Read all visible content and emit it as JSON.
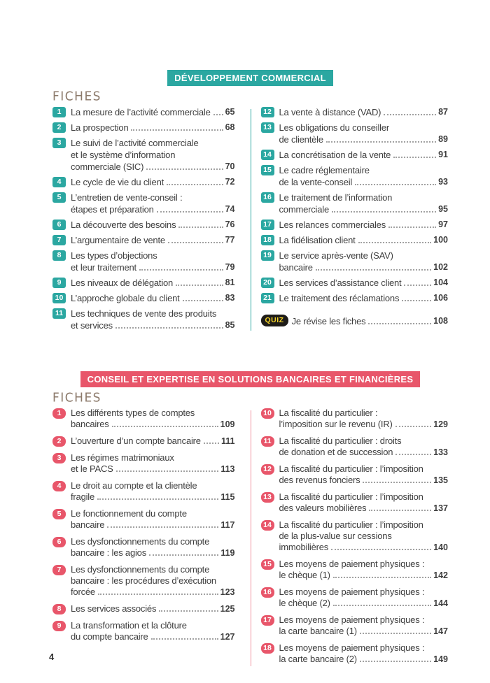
{
  "page_number": "4",
  "colors": {
    "teal_accent": "#2BA7A1",
    "red_accent": "#E8566A",
    "text": "#3E3E3E",
    "fiches_label": "#8C7A6B",
    "quiz_badge_bg": "#1E1C19",
    "quiz_badge_text": "#F5D428",
    "dot_leader": "#A2A2A2"
  },
  "sections": [
    {
      "title": "DÉVELOPPEMENT COMMERCIAL",
      "theme": "teal",
      "fiches_label": "FICHES",
      "columns": [
        {
          "items": [
            {
              "num": "1",
              "lines": [
                "La mesure de l’activité commerciale"
              ],
              "page": "65"
            },
            {
              "num": "2",
              "lines": [
                "La prospection"
              ],
              "page": "68"
            },
            {
              "num": "3",
              "lines": [
                "Le suivi de l’activité commerciale",
                "et le système d’information",
                "commerciale (SIC)"
              ],
              "page": "70"
            },
            {
              "num": "4",
              "lines": [
                "Le cycle de vie du client"
              ],
              "page": "72"
            },
            {
              "num": "5",
              "lines": [
                "L’entretien de vente-conseil :",
                "étapes et préparation"
              ],
              "page": "74"
            },
            {
              "num": "6",
              "lines": [
                "La découverte des besoins"
              ],
              "page": "76"
            },
            {
              "num": "7",
              "lines": [
                "L’argumentaire de vente"
              ],
              "page": "77"
            },
            {
              "num": "8",
              "lines": [
                "Les types d’objections",
                "et leur traitement"
              ],
              "page": "79"
            },
            {
              "num": "9",
              "lines": [
                "Les niveaux de délégation"
              ],
              "page": "81"
            },
            {
              "num": "10",
              "lines": [
                "L’approche globale du client"
              ],
              "page": "83"
            },
            {
              "num": "11",
              "lines": [
                "Les techniques de vente des produits",
                "et services"
              ],
              "page": "85"
            }
          ]
        },
        {
          "items": [
            {
              "num": "12",
              "lines": [
                "La vente à distance (VAD)"
              ],
              "page": "87"
            },
            {
              "num": "13",
              "lines": [
                "Les obligations du conseiller",
                "de clientèle"
              ],
              "page": "89"
            },
            {
              "num": "14",
              "lines": [
                "La concrétisation de la vente"
              ],
              "page": "91"
            },
            {
              "num": "15",
              "lines": [
                "Le cadre réglementaire",
                "de la vente-conseil"
              ],
              "page": "93"
            },
            {
              "num": "16",
              "lines": [
                "Le traitement de l’information",
                "commerciale"
              ],
              "page": "95"
            },
            {
              "num": "17",
              "lines": [
                "Les relances commerciales"
              ],
              "page": "97"
            },
            {
              "num": "18",
              "lines": [
                "La fidélisation client"
              ],
              "page": "100"
            },
            {
              "num": "19",
              "lines": [
                "Le service après-vente (SAV)",
                "bancaire"
              ],
              "page": "102"
            },
            {
              "num": "20",
              "lines": [
                "Les services d’assistance client"
              ],
              "page": "104"
            },
            {
              "num": "21",
              "lines": [
                "Le traitement des réclamations"
              ],
              "page": "106"
            }
          ],
          "quiz": {
            "badge": "QUIZ",
            "text": "Je révise les fiches",
            "page": "108"
          }
        }
      ]
    },
    {
      "title": "CONSEIL ET EXPERTISE EN SOLUTIONS BANCAIRES ET FINANCIÈRES",
      "theme": "red",
      "fiches_label": "FICHES",
      "columns": [
        {
          "items": [
            {
              "num": "1",
              "lines": [
                "Les différents types de comptes",
                "bancaires"
              ],
              "page": "109"
            },
            {
              "num": "2",
              "lines": [
                "L’ouverture d’un compte bancaire"
              ],
              "page": "111"
            },
            {
              "num": "3",
              "lines": [
                "Les régimes matrimoniaux",
                "et le PACS"
              ],
              "page": "113"
            },
            {
              "num": "4",
              "lines": [
                "Le droit au compte et la clientèle",
                "fragile"
              ],
              "page": "115"
            },
            {
              "num": "5",
              "lines": [
                "Le fonctionnement du compte",
                "bancaire"
              ],
              "page": "117"
            },
            {
              "num": "6",
              "lines": [
                "Les dysfonctionnements du compte",
                "bancaire : les agios"
              ],
              "page": "119"
            },
            {
              "num": "7",
              "lines": [
                "Les dysfonctionnements du compte",
                "bancaire : les procédures d’exécution",
                "forcée"
              ],
              "page": "123"
            },
            {
              "num": "8",
              "lines": [
                "Les services associés"
              ],
              "page": "125"
            },
            {
              "num": "9",
              "lines": [
                "La transformation et la clôture",
                "du compte bancaire"
              ],
              "page": "127"
            }
          ]
        },
        {
          "items": [
            {
              "num": "10",
              "lines": [
                "La fiscalité du particulier :",
                "l’imposition sur le revenu (IR)"
              ],
              "page": "129"
            },
            {
              "num": "11",
              "lines": [
                "La fiscalité du particulier : droits",
                "de donation et de succession"
              ],
              "page": "133"
            },
            {
              "num": "12",
              "lines": [
                "La fiscalité du particulier : l’imposition",
                "des revenus fonciers"
              ],
              "page": "135"
            },
            {
              "num": "13",
              "lines": [
                "La fiscalité du particulier : l’imposition",
                "des valeurs mobilières"
              ],
              "page": "137"
            },
            {
              "num": "14",
              "lines": [
                "La fiscalité du particulier : l’imposition",
                "de la plus-value sur cessions",
                "immobilières"
              ],
              "page": "140"
            },
            {
              "num": "15",
              "lines": [
                "Les moyens de paiement physiques :",
                "le chèque (1)"
              ],
              "page": "142"
            },
            {
              "num": "16",
              "lines": [
                "Les moyens de paiement physiques :",
                "le chèque (2)"
              ],
              "page": "144"
            },
            {
              "num": "17",
              "lines": [
                "Les moyens de paiement physiques :",
                "la carte bancaire (1)"
              ],
              "page": "147"
            },
            {
              "num": "18",
              "lines": [
                "Les moyens de paiement physiques :",
                "la carte bancaire (2)"
              ],
              "page": "149"
            }
          ]
        }
      ]
    }
  ]
}
